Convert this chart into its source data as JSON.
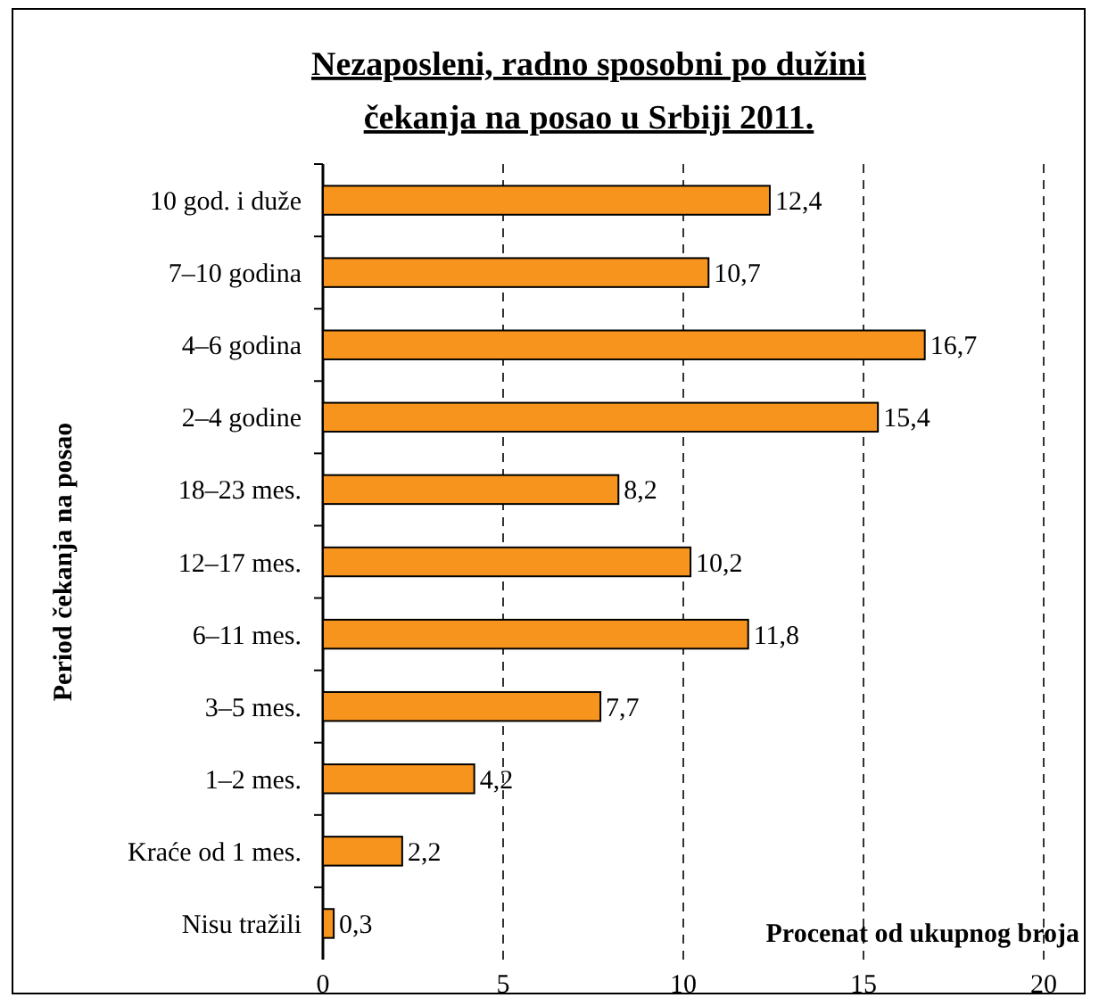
{
  "chart_data": {
    "type": "bar",
    "orientation": "horizontal",
    "title": "Nezaposleni, radno sposobni po dužini čekanja na posao u Srbiji 2011.",
    "xlabel": "Procenat od ukupnog broja",
    "ylabel": "Period čekanja na posao",
    "categories": [
      "10 god. i duže",
      "7–10 godina",
      "4–6 godina",
      "2–4 godine",
      "18–23 mes.",
      "12–17 mes.",
      "6–11 mes.",
      "3–5 mes.",
      "1–2 mes.",
      "Kraće od 1 mes.",
      "Nisu tražili"
    ],
    "values": [
      12.4,
      10.7,
      16.7,
      15.4,
      8.2,
      10.2,
      11.8,
      7.7,
      4.2,
      2.2,
      0.3
    ],
    "value_labels": [
      "12,4",
      "10,7",
      "16,7",
      "15,4",
      "8,2",
      "10,2",
      "11,8",
      "7,7",
      "4,2",
      "2,2",
      "0,3"
    ],
    "color": "#f7941d",
    "xlim": [
      0,
      20
    ],
    "xticks": [
      0,
      5,
      10,
      15,
      20
    ],
    "grid": "x"
  }
}
